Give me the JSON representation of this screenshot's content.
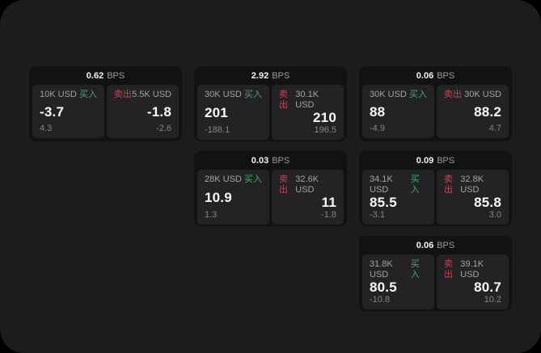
{
  "theme": {
    "background": "#1c1c1e",
    "card_bg": "#121214",
    "panel_bg": "#232325",
    "buy_green": "#3fae68",
    "sell_red": "#c84459"
  },
  "labels": {
    "buy": "买入",
    "sell": "卖出",
    "bps_unit": "BPS"
  },
  "cards": [
    {
      "bps": "0.62",
      "buy": {
        "amount": "10K USD",
        "value": "-3.7",
        "sub": "4.3"
      },
      "sell": {
        "amount": "5.5K USD",
        "value": "-1.8",
        "sub": "-2.6"
      }
    },
    {
      "bps": "2.92",
      "buy": {
        "amount": "30K USD",
        "value": "201",
        "sub": "-188.1"
      },
      "sell": {
        "amount": "30.1K USD",
        "value": "210",
        "sub": "196.5"
      }
    },
    {
      "bps": "0.06",
      "buy": {
        "amount": "30K USD",
        "value": "88",
        "sub": "-4.9"
      },
      "sell": {
        "amount": "30K USD",
        "value": "88.2",
        "sub": "4.7"
      }
    },
    {
      "bps": "0.03",
      "buy": {
        "amount": "28K USD",
        "value": "10.9",
        "sub": "1.3"
      },
      "sell": {
        "amount": "32.6K USD",
        "value": "11",
        "sub": "-1.8"
      }
    },
    {
      "bps": "0.09",
      "buy": {
        "amount": "34.1K USD",
        "value": "85.5",
        "sub": "-3.1"
      },
      "sell": {
        "amount": "32.8K USD",
        "value": "85.8",
        "sub": "3.0"
      }
    },
    {
      "bps": "0.06",
      "buy": {
        "amount": "31.8K USD",
        "value": "80.5",
        "sub": "-10.8"
      },
      "sell": {
        "amount": "39.1K USD",
        "value": "80.7",
        "sub": "10.2"
      }
    }
  ]
}
